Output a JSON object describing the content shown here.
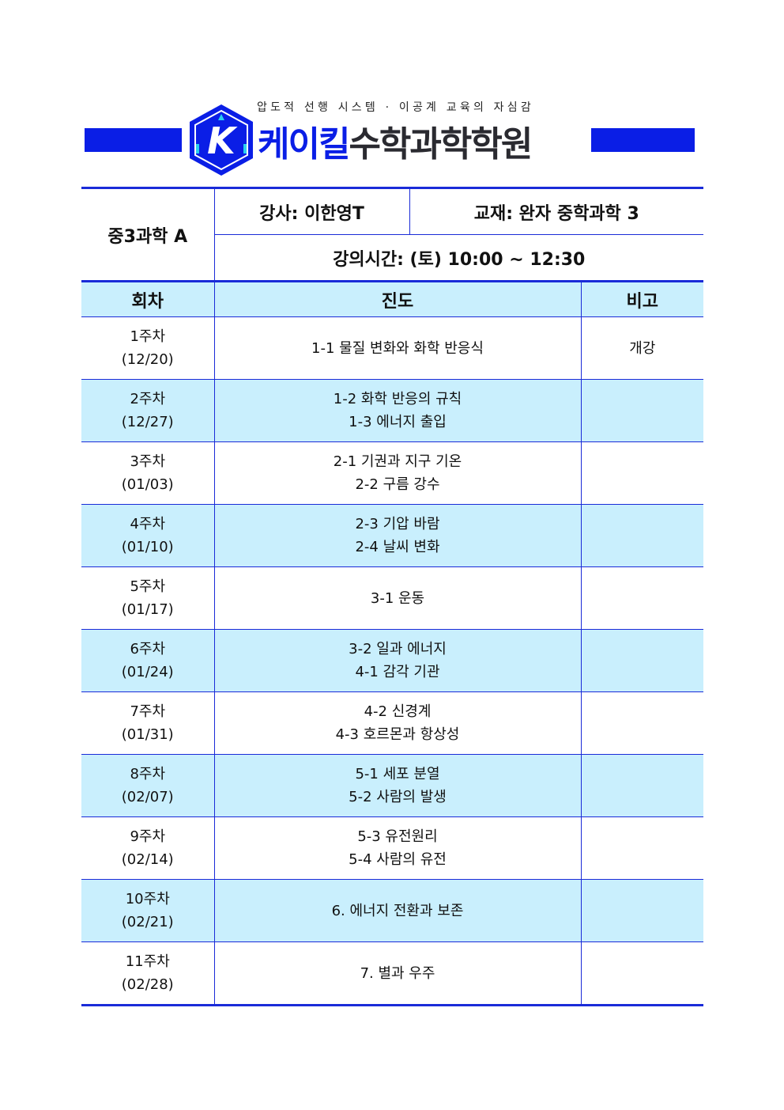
{
  "header": {
    "tagline": "압도적 선행 시스템 · 이공계 교육의 자심감",
    "brand_blue": "케이킬",
    "brand_dark": "수학과학학원",
    "logo_letter": "K",
    "colors": {
      "brand": "#0a1ee6",
      "accent": "#2ad0f0",
      "row_fill": "#c9effd"
    }
  },
  "info": {
    "course": "중3과학 A",
    "instructor": "강사: 이한영T",
    "textbook": "교재: 완자 중학과학 3",
    "schedule": "강의시간: (토) 10:00 ~ 12:30"
  },
  "table": {
    "columns": [
      "회차",
      "진도",
      "비고"
    ],
    "rows": [
      {
        "week": "1주차",
        "date": "(12/20)",
        "topics": [
          "1-1 물질 변화와 화학 반응식"
        ],
        "note": "개강"
      },
      {
        "week": "2주차",
        "date": "(12/27)",
        "topics": [
          "1-2 화학 반응의 규칙",
          "1-3 에너지 출입"
        ],
        "note": ""
      },
      {
        "week": "3주차",
        "date": "(01/03)",
        "topics": [
          "2-1 기권과 지구 기온",
          "2-2 구름 강수"
        ],
        "note": ""
      },
      {
        "week": "4주차",
        "date": "(01/10)",
        "topics": [
          "2-3 기압 바람",
          "2-4 날씨 변화"
        ],
        "note": ""
      },
      {
        "week": "5주차",
        "date": "(01/17)",
        "topics": [
          "3-1 운동"
        ],
        "note": ""
      },
      {
        "week": "6주차",
        "date": "(01/24)",
        "topics": [
          "3-2 일과 에너지",
          "4-1 감각 기관"
        ],
        "note": ""
      },
      {
        "week": "7주차",
        "date": "(01/31)",
        "topics": [
          "4-2 신경계",
          "4-3 호르몬과 항상성"
        ],
        "note": ""
      },
      {
        "week": "8주차",
        "date": "(02/07)",
        "topics": [
          "5-1 세포 분열",
          "5-2 사람의 발생"
        ],
        "note": ""
      },
      {
        "week": "9주차",
        "date": "(02/14)",
        "topics": [
          "5-3 유전원리",
          "5-4 사람의 유전"
        ],
        "note": ""
      },
      {
        "week": "10주차",
        "date": "(02/21)",
        "topics": [
          "6. 에너지 전환과 보존"
        ],
        "note": ""
      },
      {
        "week": "11주차",
        "date": "(02/28)",
        "topics": [
          "7. 별과 우주"
        ],
        "note": ""
      }
    ]
  }
}
